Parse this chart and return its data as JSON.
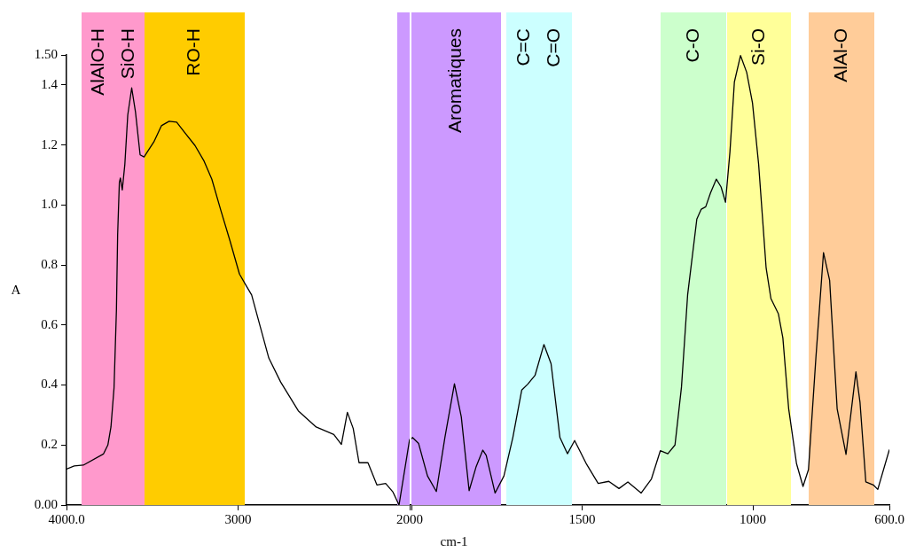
{
  "chart_data": [
    {
      "type": "line",
      "ylabel": "A",
      "x": [
        4000,
        3955,
        3902,
        3785,
        3759,
        3741,
        3723,
        3709,
        3702,
        3692,
        3686,
        3675,
        3660,
        3643,
        3620,
        3598,
        3571,
        3548,
        3491,
        3447,
        3402,
        3358,
        3313,
        3251,
        3198,
        3153,
        3101,
        3048,
        2992,
        2956,
        2921,
        2873,
        2821,
        2752,
        2649,
        2545,
        2442,
        2398,
        2363,
        2329,
        2295,
        2243,
        2191,
        2140,
        2097,
        2062,
        2000
      ],
      "series": [
        {
          "color": "#000000",
          "values": [
            0.12,
            0.13,
            0.133,
            0.17,
            0.2,
            0.26,
            0.39,
            0.65,
            0.9,
            1.075,
            1.09,
            1.05,
            1.135,
            1.3,
            1.39,
            1.31,
            1.167,
            1.16,
            1.21,
            1.264,
            1.279,
            1.276,
            1.243,
            1.198,
            1.146,
            1.086,
            0.983,
            0.882,
            0.77,
            0.734,
            0.7,
            0.599,
            0.49,
            0.41,
            0.314,
            0.26,
            0.235,
            0.202,
            0.309,
            0.255,
            0.141,
            0.141,
            0.067,
            0.072,
            0.043,
            0.0,
            0.22
          ]
        }
      ],
      "xlim": [
        4000,
        2000
      ],
      "xticks": [
        {
          "value": 4000,
          "label": "4000.0"
        },
        3000,
        2000
      ],
      "ylim": [
        0,
        1.5
      ],
      "yticks": [
        {
          "value": 0,
          "label": "0.00"
        },
        0.2,
        0.4,
        0.6,
        0.8,
        {
          "value": 1,
          "label": "1.0"
        },
        1.2,
        1.4,
        {
          "value": 1.5,
          "label": "1.50"
        }
      ],
      "bands": [
        {
          "axis": "x",
          "from": 3907,
          "to": 3545,
          "label": "AlAlO-H\nSiO-H",
          "color": "#ff99cc"
        },
        {
          "axis": "x",
          "from": 3545,
          "to": 2966,
          "label": "RO-H",
          "color": "#ffcc00"
        },
        {
          "axis": "x",
          "from": 2072,
          "to": 2000,
          "color": "#cc99ff"
        }
      ],
      "marker": "none",
      "grid": false,
      "legend": false
    },
    {
      "type": "line",
      "xlabel": "cm-1",
      "x": [
        2000,
        1997,
        1979,
        1953,
        1927,
        1902,
        1874,
        1854,
        1831,
        1811,
        1791,
        1781,
        1755,
        1729,
        1703,
        1677,
        1660,
        1638,
        1612,
        1591,
        1565,
        1543,
        1522,
        1487,
        1453,
        1422,
        1392,
        1366,
        1327,
        1297,
        1271,
        1249,
        1228,
        1209,
        1191,
        1164,
        1151,
        1138,
        1124,
        1107,
        1093,
        1080,
        1067,
        1054,
        1036,
        1018,
        1001,
        983,
        961,
        947,
        925,
        912,
        895,
        872,
        853,
        837,
        815,
        793,
        775,
        753,
        727,
        698,
        686,
        669,
        647,
        634,
        600
      ],
      "series": [
        {
          "color": "#000000",
          "values": [
            0.22,
            0.225,
            0.205,
            0.097,
            0.045,
            0.225,
            0.404,
            0.294,
            0.048,
            0.126,
            0.183,
            0.166,
            0.04,
            0.097,
            0.225,
            0.383,
            0.402,
            0.432,
            0.535,
            0.471,
            0.225,
            0.171,
            0.215,
            0.136,
            0.072,
            0.079,
            0.055,
            0.077,
            0.04,
            0.087,
            0.181,
            0.171,
            0.2,
            0.393,
            0.7,
            0.953,
            0.986,
            0.994,
            1.04,
            1.086,
            1.06,
            1.009,
            1.177,
            1.41,
            1.498,
            1.442,
            1.34,
            1.136,
            0.79,
            0.688,
            0.637,
            0.557,
            0.321,
            0.138,
            0.062,
            0.118,
            0.495,
            0.841,
            0.749,
            0.321,
            0.169,
            0.444,
            0.342,
            0.077,
            0.067,
            0.052,
            0.185
          ]
        }
      ],
      "xlim": [
        2000,
        600
      ],
      "xticks": [
        {
          "value": 2000,
          "label": null
        },
        1500,
        1000,
        {
          "value": 600,
          "label": "600.0"
        }
      ],
      "ylim": [
        0,
        1.5
      ],
      "tick_labels": "x",
      "bands": [
        {
          "axis": "x",
          "from": 2000,
          "to": 1738,
          "label": "Aromatiques",
          "color": "#cc99ff"
        },
        {
          "axis": "x",
          "from": 1720,
          "to": 1531,
          "label": "C=C\nC=O",
          "color": "#ccffff"
        },
        {
          "axis": "x",
          "from": 1269,
          "to": 1080,
          "label": "C-O",
          "color": "#ccffcc"
        },
        {
          "axis": "x",
          "from": 1075,
          "to": 889,
          "label": "Si-O",
          "color": "#ffff99"
        },
        {
          "axis": "x",
          "from": 834,
          "to": 645,
          "label": "AlAl-O",
          "color": "#ffcc99"
        }
      ],
      "marker": "none",
      "grid": false,
      "legend": false
    }
  ]
}
